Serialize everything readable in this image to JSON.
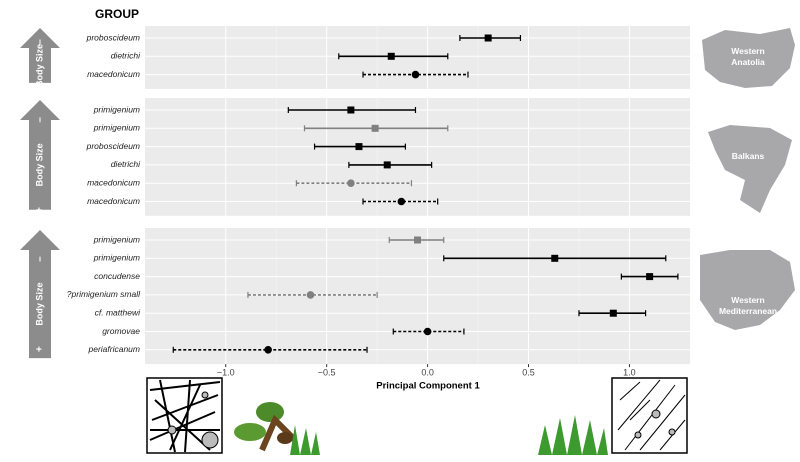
{
  "chart_data": {
    "type": "dot-whisker",
    "title": "GROUP",
    "xlabel": "Principal Component 1",
    "xlim": [
      -1.4,
      1.3
    ],
    "xticks": [
      {
        "value": -1,
        "label": "−1.0"
      },
      {
        "value": -0.5,
        "label": "−0.5"
      },
      {
        "value": 0,
        "label": "0.0"
      },
      {
        "value": 0.5,
        "label": "0.5"
      },
      {
        "value": 1,
        "label": "1.0"
      }
    ],
    "grid": true,
    "arrow_label": "Body Size",
    "arrow_plus": "+",
    "arrow_minus": "–",
    "panels": [
      {
        "region": [
          "Western",
          "Anatolia"
        ],
        "rows": [
          {
            "label": "proboscideum",
            "value": 0.3,
            "low": 0.16,
            "high": 0.46,
            "color": "#000000",
            "shape": "square",
            "line": "solid"
          },
          {
            "label": "dietrichi",
            "value": -0.18,
            "low": -0.44,
            "high": 0.1,
            "color": "#000000",
            "shape": "square",
            "line": "solid"
          },
          {
            "label": "macedonicum",
            "value": -0.06,
            "low": -0.32,
            "high": 0.2,
            "color": "#000000",
            "shape": "circle",
            "line": "dashed"
          }
        ]
      },
      {
        "region": [
          "Balkans"
        ],
        "rows": [
          {
            "label": "primigenium",
            "value": -0.38,
            "low": -0.69,
            "high": -0.06,
            "color": "#000000",
            "shape": "square",
            "line": "solid"
          },
          {
            "label": "primigenium",
            "value": -0.26,
            "low": -0.61,
            "high": 0.1,
            "color": "#808080",
            "shape": "square",
            "line": "solid"
          },
          {
            "label": "proboscideum",
            "value": -0.34,
            "low": -0.56,
            "high": -0.11,
            "color": "#000000",
            "shape": "square",
            "line": "solid"
          },
          {
            "label": "dietrichi",
            "value": -0.2,
            "low": -0.39,
            "high": 0.02,
            "color": "#000000",
            "shape": "square",
            "line": "solid"
          },
          {
            "label": "macedonicum",
            "value": -0.38,
            "low": -0.65,
            "high": -0.08,
            "color": "#808080",
            "shape": "circle",
            "line": "dashed"
          },
          {
            "label": "macedonicum",
            "value": -0.13,
            "low": -0.32,
            "high": 0.05,
            "color": "#000000",
            "shape": "circle",
            "line": "dashed"
          }
        ]
      },
      {
        "region": [
          "Western",
          "Mediterranean"
        ],
        "rows": [
          {
            "label": "primigenium",
            "value": -0.05,
            "low": -0.19,
            "high": 0.08,
            "color": "#808080",
            "shape": "square",
            "line": "solid"
          },
          {
            "label": "primigenium",
            "value": 0.63,
            "low": 0.08,
            "high": 1.18,
            "color": "#000000",
            "shape": "square",
            "line": "solid"
          },
          {
            "label": "concudense",
            "value": 1.1,
            "low": 0.96,
            "high": 1.24,
            "color": "#000000",
            "shape": "square",
            "line": "solid"
          },
          {
            "label": "?primigenium small",
            "value": -0.58,
            "low": -0.89,
            "high": -0.25,
            "color": "#808080",
            "shape": "circle",
            "line": "dashed"
          },
          {
            "label": "cf. matthewi",
            "value": 0.92,
            "low": 0.75,
            "high": 1.08,
            "color": "#000000",
            "shape": "square",
            "line": "solid"
          },
          {
            "label": "gromovae",
            "value": 0.0,
            "low": -0.17,
            "high": 0.18,
            "color": "#000000",
            "shape": "circle",
            "line": "dashed"
          },
          {
            "label": "periafricanum",
            "value": -0.79,
            "low": -1.26,
            "high": -0.3,
            "color": "#000000",
            "shape": "circle",
            "line": "dashed"
          }
        ]
      }
    ]
  }
}
